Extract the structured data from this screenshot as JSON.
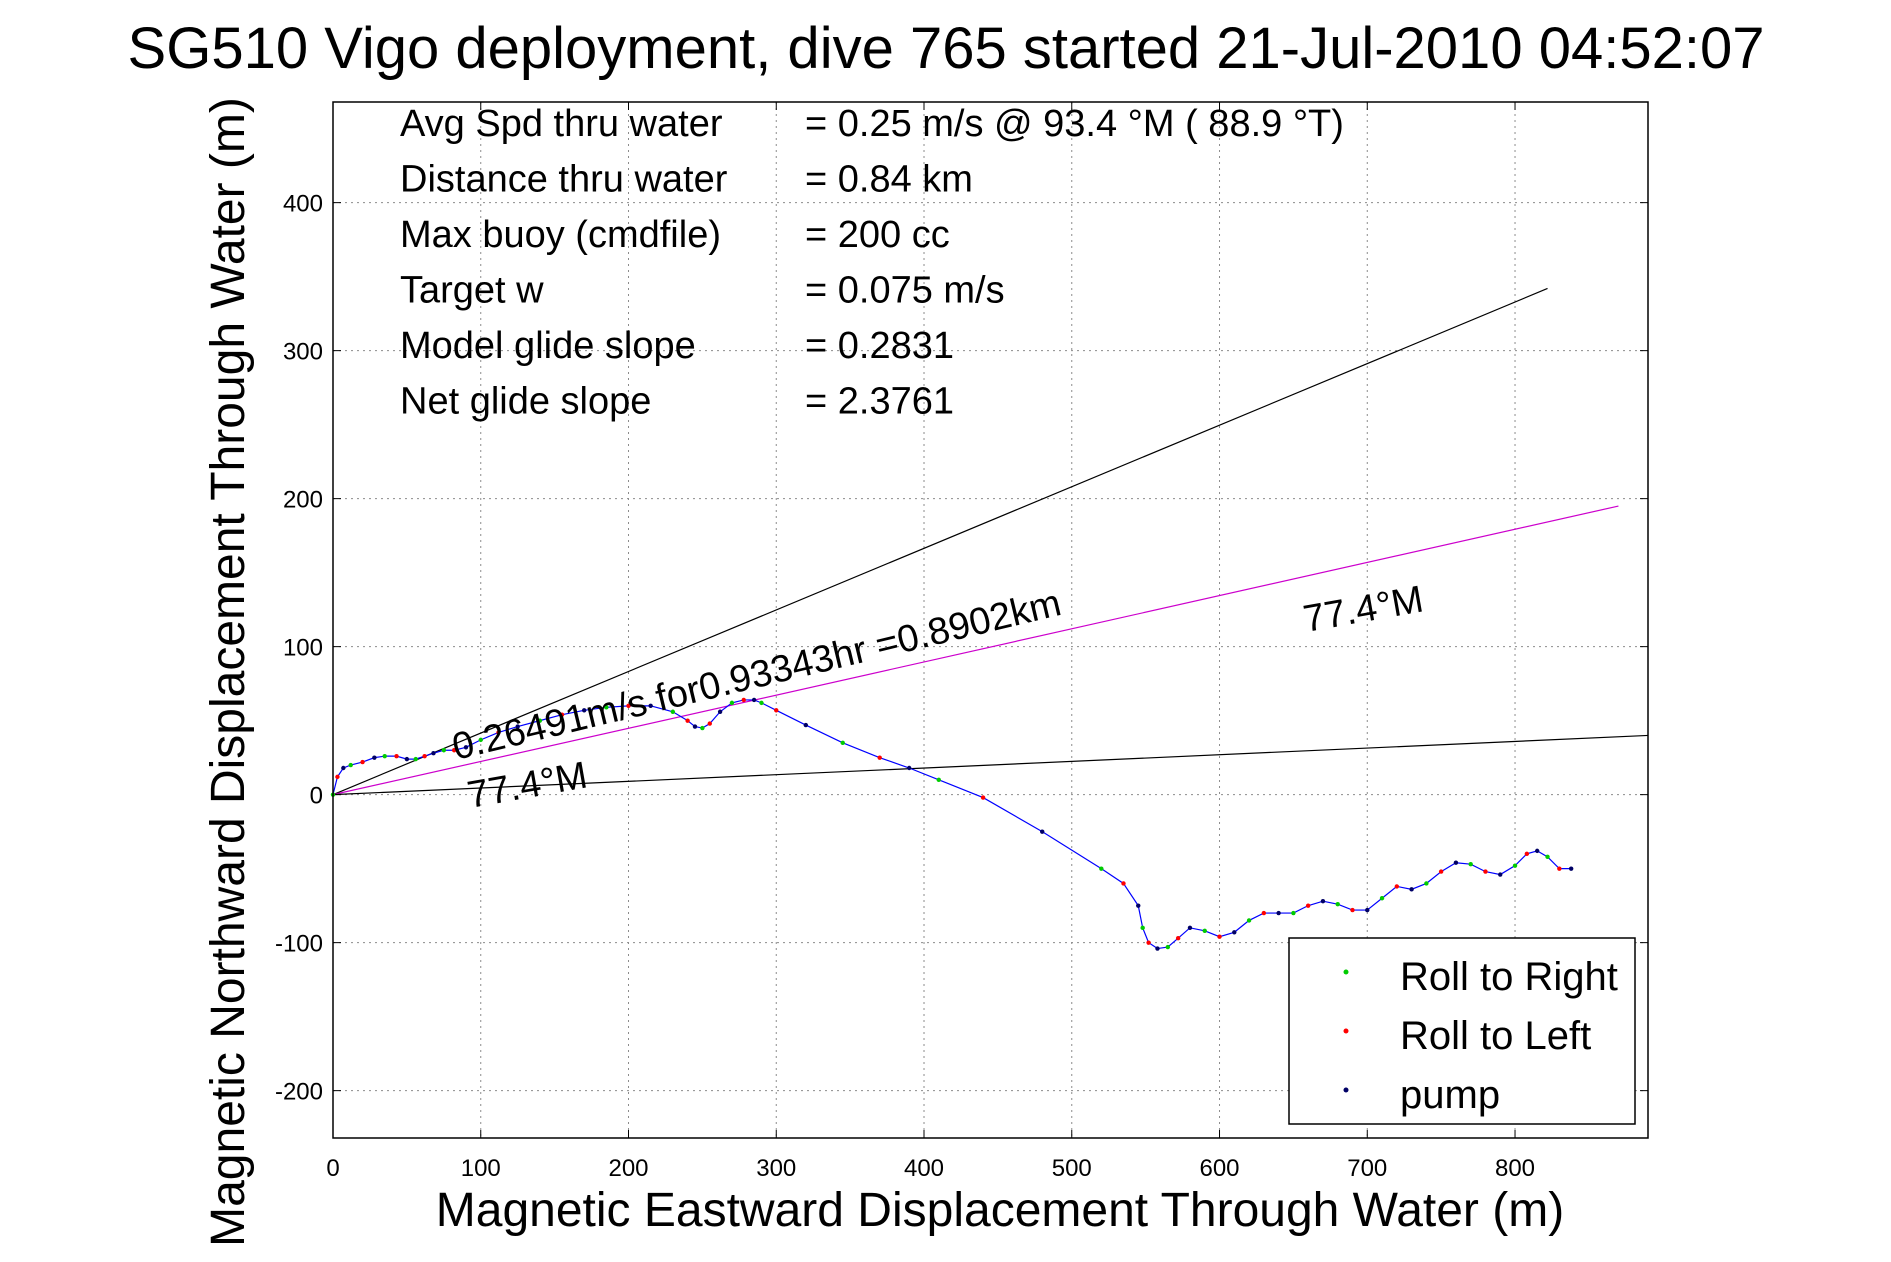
{
  "chart_data": {
    "type": "line",
    "title": "SG510 Vigo deployment, dive 765 started 21-Jul-2010 04:52:07",
    "xlabel": "Magnetic Eastward Displacement Through Water (m)",
    "ylabel": "Magnetic Northward Displacement Through Water (m)",
    "xlim": [
      0,
      890
    ],
    "ylim": [
      -232,
      468
    ],
    "xticks": [
      0,
      100,
      200,
      300,
      400,
      500,
      600,
      700,
      800
    ],
    "yticks": [
      -200,
      -100,
      0,
      100,
      200,
      300,
      400
    ],
    "grid": true,
    "legend_position": "bottom-right",
    "stats": [
      {
        "label": "Avg Spd thru water",
        "value": "=  0.25 m/s @  93.4 °M ( 88.9 °T)"
      },
      {
        "label": "Distance thru water",
        "value": "=  0.84 km"
      },
      {
        "label": "Max buoy (cmdfile)",
        "value": "= 200 cc"
      },
      {
        "label": "Target w",
        "value": "= 0.075 m/s"
      },
      {
        "label": "Model glide slope",
        "value": "= 0.2831"
      },
      {
        "label": "Net glide slope",
        "value": "= 2.3761"
      }
    ],
    "annotations": {
      "speed_text": "0.26491m/s for0.93343hr =0.8902km",
      "heading_near": "77.4°M",
      "heading_far": "77.4°M"
    },
    "reference_lines": [
      {
        "name": "upper-bound-line",
        "color": "#000000",
        "x": [
          0,
          822
        ],
        "y": [
          0,
          342
        ]
      },
      {
        "name": "heading-line",
        "color": "#cc00cc",
        "x": [
          0,
          870
        ],
        "y": [
          0,
          195
        ]
      },
      {
        "name": "lower-bound-line",
        "color": "#000000",
        "x": [
          0,
          890
        ],
        "y": [
          0,
          40
        ]
      }
    ],
    "track": {
      "name": "track",
      "color": "#0000ff",
      "x": [
        0,
        3,
        7,
        12,
        20,
        28,
        35,
        43,
        50,
        56,
        62,
        68,
        75,
        82,
        90,
        100,
        112,
        125,
        140,
        155,
        170,
        185,
        200,
        215,
        230,
        240,
        245,
        250,
        255,
        262,
        270,
        278,
        285,
        290,
        300,
        320,
        345,
        370,
        390,
        410,
        440,
        480,
        520,
        535,
        545,
        548,
        552,
        558,
        565,
        572,
        580,
        590,
        600,
        610,
        620,
        630,
        640,
        650,
        660,
        670,
        680,
        690,
        700,
        710,
        720,
        730,
        740,
        750,
        760,
        770,
        780,
        790,
        800,
        808,
        815,
        822,
        830,
        838
      ],
      "y": [
        0,
        12,
        18,
        20,
        22,
        25,
        26,
        26,
        24,
        24,
        26,
        28,
        30,
        30,
        32,
        37,
        42,
        46,
        50,
        54,
        57,
        59,
        60,
        60,
        56,
        50,
        46,
        45,
        48,
        56,
        62,
        64,
        64,
        62,
        57,
        47,
        35,
        25,
        18,
        10,
        -2,
        -25,
        -50,
        -60,
        -75,
        -90,
        -100,
        -104,
        -103,
        -97,
        -90,
        -92,
        -96,
        -93,
        -85,
        -80,
        -80,
        -80,
        -75,
        -72,
        -74,
        -78,
        -78,
        -70,
        -62,
        -64,
        -60,
        -52,
        -46,
        -47,
        -52,
        -54,
        -48,
        -40,
        -38,
        -42,
        -50,
        -50
      ],
      "marker_colors": [
        "#00cc00",
        "#ff0000",
        "#000066"
      ],
      "marker_every": 1
    },
    "legend": [
      {
        "label": "Roll to Right",
        "color": "#00cc00"
      },
      {
        "label": "Roll to Left",
        "color": "#ff0000"
      },
      {
        "label": "pump",
        "color": "#000066"
      }
    ]
  }
}
